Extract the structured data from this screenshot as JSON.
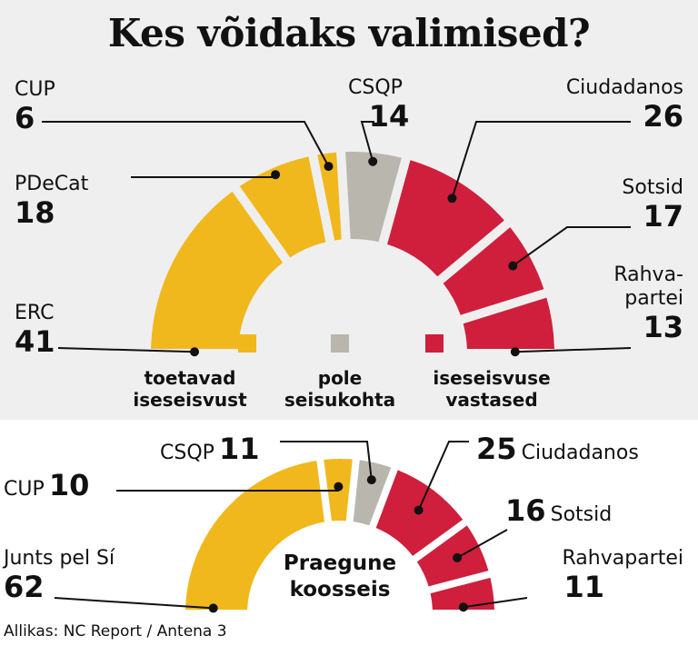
{
  "title": "Kes võidaks valimised?",
  "colors": {
    "pro": "#f0b81d",
    "neutral": "#b8b6ad",
    "against": "#cf1f3c",
    "panel": "#efefef"
  },
  "chart_data": [
    {
      "type": "pie",
      "subtype": "semicircle-parliament",
      "title": "Kes võidaks valimised?",
      "series": [
        {
          "party": "ERC",
          "seats": 41,
          "group": "pro"
        },
        {
          "party": "PDeCat",
          "seats": 18,
          "group": "pro"
        },
        {
          "party": "CUP",
          "seats": 6,
          "group": "pro"
        },
        {
          "party": "CSQP",
          "seats": 14,
          "group": "neutral"
        },
        {
          "party": "Ciudadanos",
          "seats": 26,
          "group": "against"
        },
        {
          "party": "Sotsid",
          "seats": 17,
          "group": "against"
        },
        {
          "party": "Rahvapartei",
          "seats": 13,
          "group": "against"
        }
      ],
      "legend": [
        {
          "group": "pro",
          "label_lines": [
            "toetavad",
            "iseseisvust"
          ]
        },
        {
          "group": "neutral",
          "label_lines": [
            "pole",
            "seisukohta"
          ]
        },
        {
          "group": "against",
          "label_lines": [
            "iseseisvuse",
            "vastased"
          ]
        }
      ]
    },
    {
      "type": "pie",
      "subtype": "semicircle-parliament",
      "title": "Praegune koosseis",
      "center_label_lines": [
        "Praegune",
        "koosseis"
      ],
      "series": [
        {
          "party": "Junts pel Sí",
          "seats": 62,
          "group": "pro"
        },
        {
          "party": "CUP",
          "seats": 10,
          "group": "pro"
        },
        {
          "party": "CSQP",
          "seats": 11,
          "group": "neutral"
        },
        {
          "party": "Ciudadanos",
          "seats": 25,
          "group": "against"
        },
        {
          "party": "Sotsid",
          "seats": 16,
          "group": "against"
        },
        {
          "party": "Rahvapartei",
          "seats": 11,
          "group": "against"
        }
      ]
    }
  ],
  "top_labels": {
    "cup": {
      "name": "CUP",
      "value": "6"
    },
    "pdecat": {
      "name": "PDeCat",
      "value": "18"
    },
    "erc": {
      "name": "ERC",
      "value": "41"
    },
    "csqp": {
      "name": "CSQP",
      "value": "14"
    },
    "ciudadanos": {
      "name": "Ciudadanos",
      "value": "26"
    },
    "sotsid": {
      "name": "Sotsid",
      "value": "17"
    },
    "rahvapartei": {
      "name_line1": "Rahva-",
      "name_line2": "partei",
      "value": "13"
    }
  },
  "bottom_labels": {
    "csqp": {
      "name": "CSQP",
      "value": "11"
    },
    "cup": {
      "name": "CUP",
      "value": "10"
    },
    "junts": {
      "name": "Junts pel Sí",
      "value": "62"
    },
    "ciudadanos": {
      "name": "Ciudadanos",
      "value": "25"
    },
    "sotsid": {
      "name": "Sotsid",
      "value": "16"
    },
    "rahvapartei": {
      "name": "Rahvapartei",
      "value": "11"
    }
  },
  "legend_labels": {
    "pro_line1": "toetavad",
    "pro_line2": "iseseisvust",
    "neutral_line1": "pole",
    "neutral_line2": "seisukohta",
    "against_line1": "iseseisvuse",
    "against_line2": "vastased"
  },
  "center_title": {
    "line1": "Praegune",
    "line2": "koosseis"
  },
  "source": "Allikas: NC Report / Antena 3"
}
